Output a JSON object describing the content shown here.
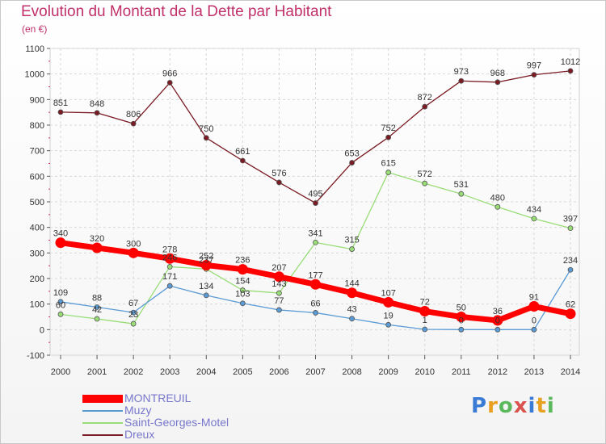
{
  "title": "Evolution du Montant de la Dette par Habitant",
  "subtitle": "(en €)",
  "logo_text": "Proxiti",
  "chart_data": {
    "type": "line",
    "title": "Evolution du Montant de la Dette par Habitant",
    "ylabel": "(en €)",
    "x": [
      2000,
      2001,
      2002,
      2003,
      2004,
      2005,
      2006,
      2007,
      2008,
      2009,
      2010,
      2011,
      2012,
      2013,
      2014
    ],
    "ylim": [
      -100,
      1100
    ],
    "yticks": [
      -100,
      0,
      100,
      200,
      300,
      400,
      500,
      600,
      700,
      800,
      900,
      1000,
      1100
    ],
    "grid": true,
    "legend_position": "bottom-left",
    "series": [
      {
        "name": "MONTREUIL",
        "color": "#ff0000",
        "values": [
          340,
          320,
          300,
          278,
          252,
          236,
          207,
          177,
          144,
          107,
          72,
          50,
          36,
          91,
          62
        ]
      },
      {
        "name": "Muzy",
        "color": "#5b9bd5",
        "values": [
          109,
          88,
          67,
          171,
          134,
          103,
          77,
          66,
          43,
          19,
          1,
          0,
          0,
          0,
          234
        ]
      },
      {
        "name": "Saint-Georges-Motel",
        "color": "#99dd77",
        "values": [
          60,
          42,
          23,
          246,
          237,
          154,
          143,
          341,
          315,
          615,
          572,
          531,
          480,
          434,
          397
        ]
      },
      {
        "name": "Dreux",
        "color": "#7a1a22",
        "values": [
          851,
          848,
          806,
          966,
          750,
          661,
          576,
          495,
          653,
          752,
          872,
          973,
          968,
          997,
          1012
        ]
      }
    ]
  }
}
